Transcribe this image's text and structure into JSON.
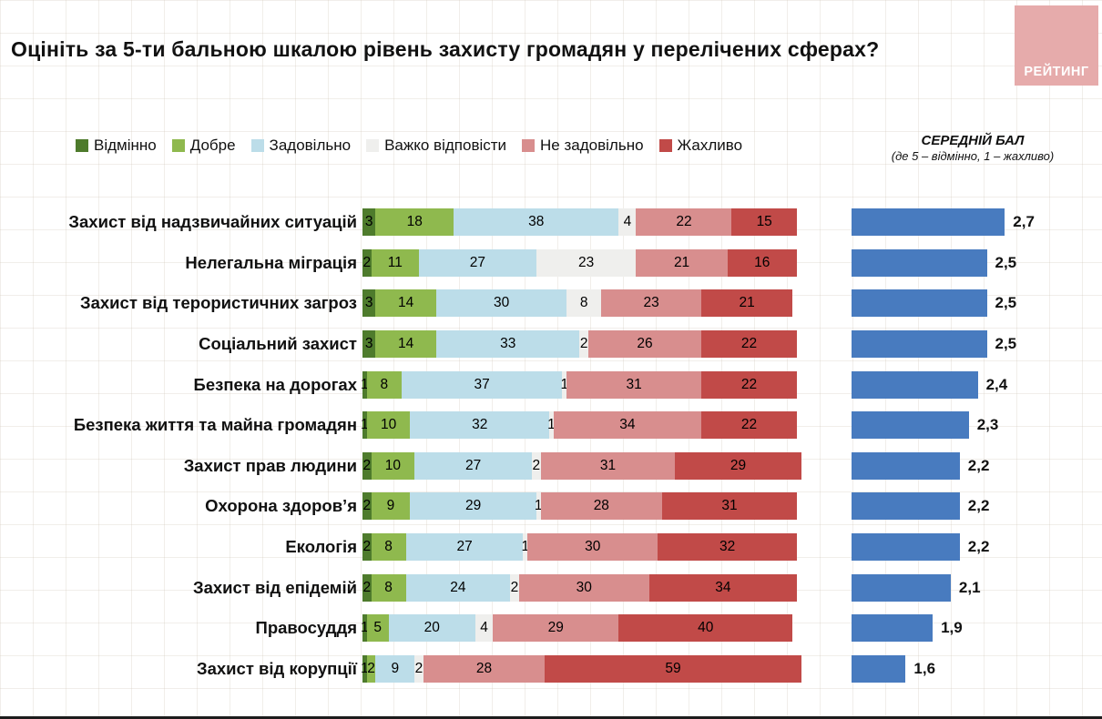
{
  "page": {
    "title": "Оцініть за 5-ти бальною шкалою рівень захисту громадян у перелічених сферах?",
    "logo": "РЕЙТИНГ",
    "logo_color": "#e6abab"
  },
  "right_panel": {
    "title": "СЕРЕДНІЙ БАЛ",
    "subtitle": "(де 5 – відмінно, 1 – жахливо)"
  },
  "chart_data": {
    "type": "bar",
    "stacked": true,
    "orientation": "horizontal",
    "title": "Оцініть за 5-ти бальною шкалою рівень захисту громадян у перелічених сферах?",
    "xlabel": "",
    "ylabel": "",
    "xlim": [
      0,
      100
    ],
    "legend_position": "top",
    "grid": true,
    "categories": [
      "Захист від надзвичайних ситуацій",
      "Нелегальна міграція",
      "Захист від терористичних загроз",
      "Соціальний захист",
      "Безпека на дорогах",
      "Безпека життя та майна громадян",
      "Захист прав людини",
      "Охорона здоров’я",
      "Екологія",
      "Захист від епідемій",
      "Правосуддя",
      "Захист від корупції"
    ],
    "series": [
      {
        "name": "Відмінно",
        "color": "#4e7b2c",
        "values": [
          3,
          2,
          3,
          3,
          1,
          1,
          2,
          2,
          2,
          2,
          1,
          1
        ]
      },
      {
        "name": "Добре",
        "color": "#8fb94e",
        "values": [
          18,
          11,
          14,
          14,
          8,
          10,
          10,
          9,
          8,
          8,
          5,
          2
        ]
      },
      {
        "name": "Задовільно",
        "color": "#bcdde9",
        "values": [
          38,
          27,
          30,
          33,
          37,
          32,
          27,
          29,
          27,
          24,
          20,
          9
        ]
      },
      {
        "name": "Важко відповісти",
        "color": "#efefed",
        "values": [
          4,
          23,
          8,
          2,
          1,
          1,
          2,
          1,
          1,
          2,
          4,
          2
        ]
      },
      {
        "name": "Не задовільно",
        "color": "#d88e8e",
        "values": [
          22,
          21,
          23,
          26,
          31,
          34,
          31,
          28,
          30,
          30,
          29,
          28
        ]
      },
      {
        "name": "Жахливо",
        "color": "#c14a48",
        "values": [
          15,
          16,
          21,
          22,
          22,
          22,
          29,
          31,
          32,
          34,
          40,
          59
        ]
      }
    ],
    "averages": [
      2.7,
      2.5,
      2.5,
      2.5,
      2.4,
      2.3,
      2.2,
      2.2,
      2.2,
      2.1,
      1.9,
      1.6
    ],
    "average_labels": [
      "2,7",
      "2,5",
      "2,5",
      "2,5",
      "2,4",
      "2,3",
      "2,2",
      "2,2",
      "2,2",
      "2,1",
      "1,9",
      "1,6"
    ],
    "average_scale_note": "bar width proportional to (score - 1)",
    "average_color": "#487bbf"
  }
}
